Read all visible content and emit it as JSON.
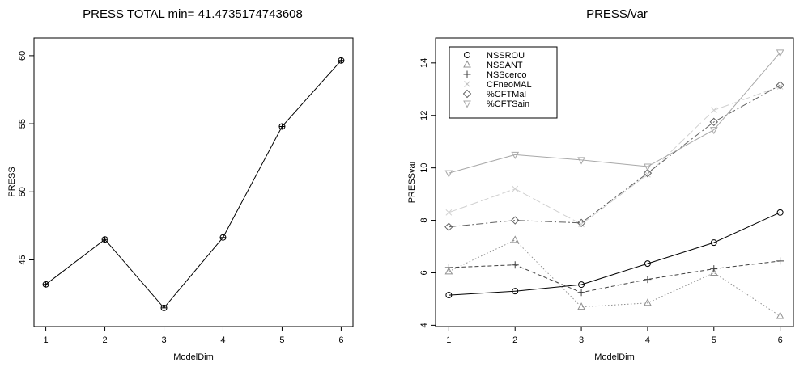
{
  "chart_data": [
    {
      "type": "line",
      "title": "PRESS TOTAL min= 41.4735174743608",
      "xlabel": "ModelDim",
      "ylabel": "PRESS",
      "x": [
        1,
        2,
        3,
        4,
        5,
        6
      ],
      "xticks": [
        "1",
        "2",
        "3",
        "4",
        "5",
        "6"
      ],
      "yticks": [
        "45",
        "50",
        "55",
        "60"
      ],
      "xlim": [
        0.8,
        6.2
      ],
      "ylim": [
        40.1,
        61.3
      ],
      "series": [
        {
          "values": [
            43.2,
            46.5,
            41.47,
            46.65,
            54.8,
            59.65
          ],
          "color": "#000000",
          "marker": "circle-plus",
          "linestyle": "solid"
        }
      ],
      "grid": false
    },
    {
      "type": "line",
      "title": "PRESS/var",
      "xlabel": "ModelDim",
      "ylabel": "PRESSvar",
      "x": [
        1,
        2,
        3,
        4,
        5,
        6
      ],
      "xticks": [
        "1",
        "2",
        "3",
        "4",
        "5",
        "6"
      ],
      "yticks": [
        "4",
        "6",
        "8",
        "10",
        "12",
        "14"
      ],
      "xlim": [
        0.8,
        6.2
      ],
      "ylim": [
        3.95,
        14.95
      ],
      "legend": "top-left",
      "grid": false,
      "series": [
        {
          "name": "NSSROU",
          "values": [
            5.15,
            5.3,
            5.55,
            6.35,
            7.15,
            8.3
          ],
          "color": "#000000",
          "marker": "circle",
          "linestyle": "solid"
        },
        {
          "name": "NSSANT",
          "values": [
            6.05,
            7.25,
            4.7,
            4.85,
            6.0,
            4.35
          ],
          "color": "#909090",
          "marker": "triangle",
          "linestyle": "dotted"
        },
        {
          "name": "NSScerco",
          "values": [
            6.2,
            6.3,
            5.25,
            5.75,
            6.15,
            6.45
          ],
          "color": "#404040",
          "marker": "plus",
          "linestyle": "dashed"
        },
        {
          "name": "CFneoMAL",
          "values": [
            8.3,
            9.2,
            7.85,
            9.75,
            12.2,
            13.1
          ],
          "color": "#d0d0d0",
          "marker": "cross",
          "linestyle": "longdash"
        },
        {
          "name": "%CFTMal",
          "values": [
            7.75,
            8.0,
            7.9,
            9.8,
            11.75,
            13.15
          ],
          "color": "#606060",
          "marker": "diamond",
          "linestyle": "dashdot"
        },
        {
          "name": "%CFTSain",
          "values": [
            9.8,
            10.5,
            10.3,
            10.05,
            11.45,
            14.4
          ],
          "color": "#a8a8a8",
          "marker": "triangle-down",
          "linestyle": "solid"
        }
      ]
    }
  ]
}
